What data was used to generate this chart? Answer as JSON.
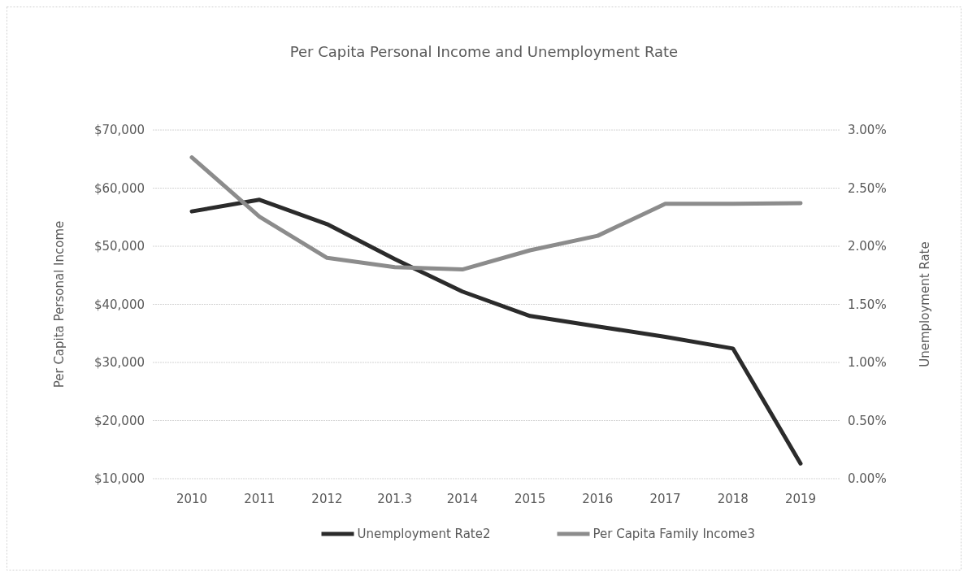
{
  "chart_data": {
    "type": "line",
    "title": "Per Capita Personal Income and Unemployment Rate",
    "ylabel": "Per Capita Personal Income",
    "y2label": "Unemployment Rate",
    "categories": [
      "2010",
      "2011",
      "2012",
      "201.3",
      "2014",
      "2015",
      "2016",
      "2017",
      "2018",
      "2019"
    ],
    "series": [
      {
        "name": "Unemployment Rate2",
        "color": "#2b2b2b",
        "axis": "y2",
        "values": [
          2.3,
          2.4,
          2.19,
          1.89,
          1.61,
          1.4,
          1.31,
          1.22,
          1.12,
          0.13
        ]
      },
      {
        "name": "Per Capita Family Income3",
        "color": "#8c8c8c",
        "axis": "y",
        "values": [
          65300,
          55100,
          48000,
          46400,
          46000,
          49300,
          51800,
          57300,
          57300,
          57400
        ]
      }
    ],
    "ylim": [
      10000,
      70000
    ],
    "yticks": [
      {
        "value": 10000,
        "label": "$10,000"
      },
      {
        "value": 20000,
        "label": "$20,000"
      },
      {
        "value": 30000,
        "label": "$30,000"
      },
      {
        "value": 40000,
        "label": "$40,000"
      },
      {
        "value": 50000,
        "label": "$50,000"
      },
      {
        "value": 60000,
        "label": "$60,000"
      },
      {
        "value": 70000,
        "label": "$70,000"
      }
    ],
    "y2lim": [
      0,
      3
    ],
    "y2ticks": [
      {
        "value": 0,
        "label": "0.00%"
      },
      {
        "value": 0.5,
        "label": "0.50%"
      },
      {
        "value": 1,
        "label": "1.00%"
      },
      {
        "value": 1.5,
        "label": "1.50%"
      },
      {
        "value": 2,
        "label": "2.00%"
      },
      {
        "value": 2.5,
        "label": "2.50%"
      },
      {
        "value": 3,
        "label": "3.00%"
      }
    ],
    "grid": "y",
    "legend": "bottom",
    "marker": "none",
    "line_style": "solid"
  }
}
